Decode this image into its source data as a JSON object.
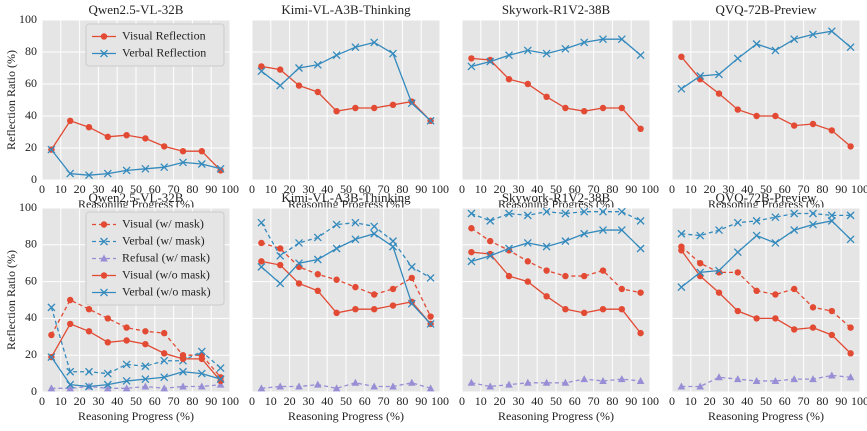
{
  "chart_data": [
    {
      "type": "line",
      "title": "Qwen2.5-VL-32B",
      "xlabel": "Reasoning Progress (%)",
      "ylabel": "Reflection Ratio (%)",
      "x": [
        5,
        15,
        25,
        35,
        45,
        55,
        65,
        75,
        85,
        95
      ],
      "xlim": [
        0,
        100
      ],
      "ylim": [
        0,
        100
      ],
      "xticks": [
        0,
        10,
        20,
        30,
        40,
        50,
        60,
        70,
        80,
        90,
        100
      ],
      "yticks": [
        0,
        20,
        40,
        60,
        80,
        100
      ],
      "show_ytick_labels": true,
      "grid": true,
      "legend": "upper right",
      "series": [
        {
          "name": "Visual Reflection",
          "color": "#E24A33",
          "marker": "o",
          "linestyle": "solid",
          "values": [
            19,
            37,
            33,
            27,
            28,
            26,
            21,
            18,
            18,
            6
          ]
        },
        {
          "name": "Verbal Reflection",
          "color": "#348ABD",
          "marker": "x",
          "linestyle": "solid",
          "values": [
            19,
            4,
            3,
            4,
            6,
            7,
            8,
            11,
            10,
            7
          ]
        }
      ]
    },
    {
      "type": "line",
      "title": "Kimi-VL-A3B-Thinking",
      "xlabel": "Reasoning Progress (%)",
      "x": [
        5,
        15,
        25,
        35,
        45,
        55,
        65,
        75,
        85,
        95
      ],
      "xlim": [
        0,
        100
      ],
      "ylim": [
        0,
        100
      ],
      "xticks": [
        0,
        10,
        20,
        30,
        40,
        50,
        60,
        70,
        80,
        90,
        100
      ],
      "yticks": [
        0,
        20,
        40,
        60,
        80,
        100
      ],
      "show_ytick_labels": false,
      "grid": true,
      "series": [
        {
          "color": "#E24A33",
          "marker": "o",
          "linestyle": "solid",
          "values": [
            71,
            69,
            59,
            55,
            43,
            45,
            45,
            47,
            49,
            37
          ]
        },
        {
          "color": "#348ABD",
          "marker": "x",
          "linestyle": "solid",
          "values": [
            68,
            59,
            70,
            72,
            78,
            83,
            86,
            79,
            48,
            37
          ]
        }
      ]
    },
    {
      "type": "line",
      "title": "Skywork-R1V2-38B",
      "xlabel": "Reasoning Progress (%)",
      "x": [
        5,
        15,
        25,
        35,
        45,
        55,
        65,
        75,
        85,
        95
      ],
      "xlim": [
        0,
        100
      ],
      "ylim": [
        0,
        100
      ],
      "xticks": [
        0,
        10,
        20,
        30,
        40,
        50,
        60,
        70,
        80,
        90,
        100
      ],
      "yticks": [
        0,
        20,
        40,
        60,
        80,
        100
      ],
      "show_ytick_labels": false,
      "grid": true,
      "series": [
        {
          "color": "#E24A33",
          "marker": "o",
          "linestyle": "solid",
          "values": [
            76,
            75,
            63,
            60,
            52,
            45,
            43,
            45,
            45,
            32
          ]
        },
        {
          "color": "#348ABD",
          "marker": "x",
          "linestyle": "solid",
          "values": [
            71,
            74,
            78,
            81,
            79,
            82,
            86,
            88,
            88,
            78
          ]
        }
      ]
    },
    {
      "type": "line",
      "title": "QVQ-72B-Preview",
      "xlabel": "Reasoning Progress (%)",
      "x": [
        5,
        15,
        25,
        35,
        45,
        55,
        65,
        75,
        85,
        95
      ],
      "xlim": [
        0,
        100
      ],
      "ylim": [
        0,
        100
      ],
      "xticks": [
        0,
        10,
        20,
        30,
        40,
        50,
        60,
        70,
        80,
        90,
        100
      ],
      "yticks": [
        0,
        20,
        40,
        60,
        80,
        100
      ],
      "show_ytick_labels": false,
      "grid": true,
      "series": [
        {
          "color": "#E24A33",
          "marker": "o",
          "linestyle": "solid",
          "values": [
            77,
            63,
            54,
            44,
            40,
            40,
            34,
            35,
            31,
            21
          ]
        },
        {
          "color": "#348ABD",
          "marker": "x",
          "linestyle": "solid",
          "values": [
            57,
            65,
            66,
            76,
            85,
            81,
            88,
            91,
            93,
            83
          ]
        }
      ]
    },
    {
      "type": "line",
      "title": "Qwen2.5-VL-32B",
      "xlabel": "Reasoning Progress (%)",
      "ylabel": "Reflection Ratio (%)",
      "x": [
        5,
        15,
        25,
        35,
        45,
        55,
        65,
        75,
        85,
        95
      ],
      "xlim": [
        0,
        100
      ],
      "ylim": [
        0,
        100
      ],
      "xticks": [
        0,
        10,
        20,
        30,
        40,
        50,
        60,
        70,
        80,
        90,
        100
      ],
      "yticks": [
        0,
        20,
        40,
        60,
        80,
        100
      ],
      "show_ytick_labels": true,
      "grid": true,
      "legend": "upper right",
      "series": [
        {
          "name": "Visual (w/ mask)",
          "color": "#E24A33",
          "marker": "o",
          "linestyle": "dashed",
          "values": [
            31,
            50,
            45,
            40,
            35,
            33,
            32,
            20,
            20,
            8
          ]
        },
        {
          "name": "Verbal (w/ mask)",
          "color": "#348ABD",
          "marker": "x",
          "linestyle": "dashed",
          "values": [
            46,
            11,
            11,
            10,
            15,
            14,
            17,
            17,
            22,
            13
          ]
        },
        {
          "name": "Refusal (w/ mask)",
          "color": "#988ED5",
          "marker": "^",
          "linestyle": "dashed",
          "values": [
            2,
            2,
            3,
            2,
            2,
            3,
            2,
            3,
            3,
            4
          ]
        },
        {
          "name": "Visual (w/o mask)",
          "color": "#E24A33",
          "marker": "o",
          "linestyle": "solid",
          "values": [
            19,
            37,
            33,
            27,
            28,
            26,
            21,
            18,
            18,
            6
          ]
        },
        {
          "name": "Verbal (w/o mask)",
          "color": "#348ABD",
          "marker": "x",
          "linestyle": "solid",
          "values": [
            19,
            4,
            3,
            4,
            6,
            7,
            8,
            11,
            10,
            7
          ]
        }
      ]
    },
    {
      "type": "line",
      "title": "Kimi-VL-A3B-Thinking",
      "xlabel": "Reasoning Progress (%)",
      "x": [
        5,
        15,
        25,
        35,
        45,
        55,
        65,
        75,
        85,
        95
      ],
      "xlim": [
        0,
        100
      ],
      "ylim": [
        0,
        100
      ],
      "xticks": [
        0,
        10,
        20,
        30,
        40,
        50,
        60,
        70,
        80,
        90,
        100
      ],
      "yticks": [
        0,
        20,
        40,
        60,
        80,
        100
      ],
      "show_ytick_labels": false,
      "grid": true,
      "series": [
        {
          "color": "#E24A33",
          "marker": "o",
          "linestyle": "dashed",
          "values": [
            81,
            78,
            68,
            64,
            61,
            57,
            53,
            56,
            62,
            41
          ]
        },
        {
          "color": "#348ABD",
          "marker": "x",
          "linestyle": "dashed",
          "values": [
            92,
            74,
            81,
            84,
            91,
            92,
            90,
            82,
            68,
            62
          ]
        },
        {
          "color": "#988ED5",
          "marker": "^",
          "linestyle": "dashed",
          "values": [
            2,
            3,
            3,
            4,
            2,
            5,
            3,
            3,
            5,
            2
          ]
        },
        {
          "color": "#E24A33",
          "marker": "o",
          "linestyle": "solid",
          "values": [
            71,
            69,
            59,
            55,
            43,
            45,
            45,
            47,
            49,
            37
          ]
        },
        {
          "color": "#348ABD",
          "marker": "x",
          "linestyle": "solid",
          "values": [
            68,
            59,
            70,
            72,
            78,
            83,
            86,
            79,
            48,
            37
          ]
        }
      ]
    },
    {
      "type": "line",
      "title": "Skywork-R1V2-38B",
      "xlabel": "Reasoning Progress (%)",
      "x": [
        5,
        15,
        25,
        35,
        45,
        55,
        65,
        75,
        85,
        95
      ],
      "xlim": [
        0,
        100
      ],
      "ylim": [
        0,
        100
      ],
      "xticks": [
        0,
        10,
        20,
        30,
        40,
        50,
        60,
        70,
        80,
        90,
        100
      ],
      "yticks": [
        0,
        20,
        40,
        60,
        80,
        100
      ],
      "show_ytick_labels": false,
      "grid": true,
      "series": [
        {
          "color": "#E24A33",
          "marker": "o",
          "linestyle": "dashed",
          "values": [
            89,
            82,
            77,
            71,
            66,
            63,
            63,
            66,
            56,
            54
          ]
        },
        {
          "color": "#348ABD",
          "marker": "x",
          "linestyle": "dashed",
          "values": [
            97,
            93,
            97,
            96,
            98,
            97,
            98,
            98,
            98,
            93
          ]
        },
        {
          "color": "#988ED5",
          "marker": "^",
          "linestyle": "dashed",
          "values": [
            5,
            3,
            4,
            5,
            5,
            5,
            7,
            6,
            7,
            6
          ]
        },
        {
          "color": "#E24A33",
          "marker": "o",
          "linestyle": "solid",
          "values": [
            76,
            75,
            63,
            60,
            52,
            45,
            43,
            45,
            45,
            32
          ]
        },
        {
          "color": "#348ABD",
          "marker": "x",
          "linestyle": "solid",
          "values": [
            71,
            74,
            78,
            81,
            79,
            82,
            86,
            88,
            88,
            78
          ]
        }
      ]
    },
    {
      "type": "line",
      "title": "QVQ-72B-Preview",
      "xlabel": "Reasoning Progress (%)",
      "x": [
        5,
        15,
        25,
        35,
        45,
        55,
        65,
        75,
        85,
        95
      ],
      "xlim": [
        0,
        100
      ],
      "ylim": [
        0,
        100
      ],
      "xticks": [
        0,
        10,
        20,
        30,
        40,
        50,
        60,
        70,
        80,
        90,
        100
      ],
      "yticks": [
        0,
        20,
        40,
        60,
        80,
        100
      ],
      "show_ytick_labels": false,
      "grid": true,
      "series": [
        {
          "color": "#E24A33",
          "marker": "o",
          "linestyle": "dashed",
          "values": [
            79,
            70,
            65,
            65,
            55,
            53,
            56,
            46,
            44,
            35
          ]
        },
        {
          "color": "#348ABD",
          "marker": "x",
          "linestyle": "dashed",
          "values": [
            86,
            85,
            88,
            92,
            93,
            95,
            97,
            97,
            96,
            96
          ]
        },
        {
          "color": "#988ED5",
          "marker": "^",
          "linestyle": "dashed",
          "values": [
            3,
            3,
            8,
            7,
            6,
            6,
            7,
            7,
            9,
            8
          ]
        },
        {
          "color": "#E24A33",
          "marker": "o",
          "linestyle": "solid",
          "values": [
            77,
            63,
            54,
            44,
            40,
            40,
            34,
            35,
            31,
            21
          ]
        },
        {
          "color": "#348ABD",
          "marker": "x",
          "linestyle": "solid",
          "values": [
            57,
            65,
            66,
            76,
            85,
            81,
            88,
            91,
            93,
            83
          ]
        }
      ]
    }
  ]
}
